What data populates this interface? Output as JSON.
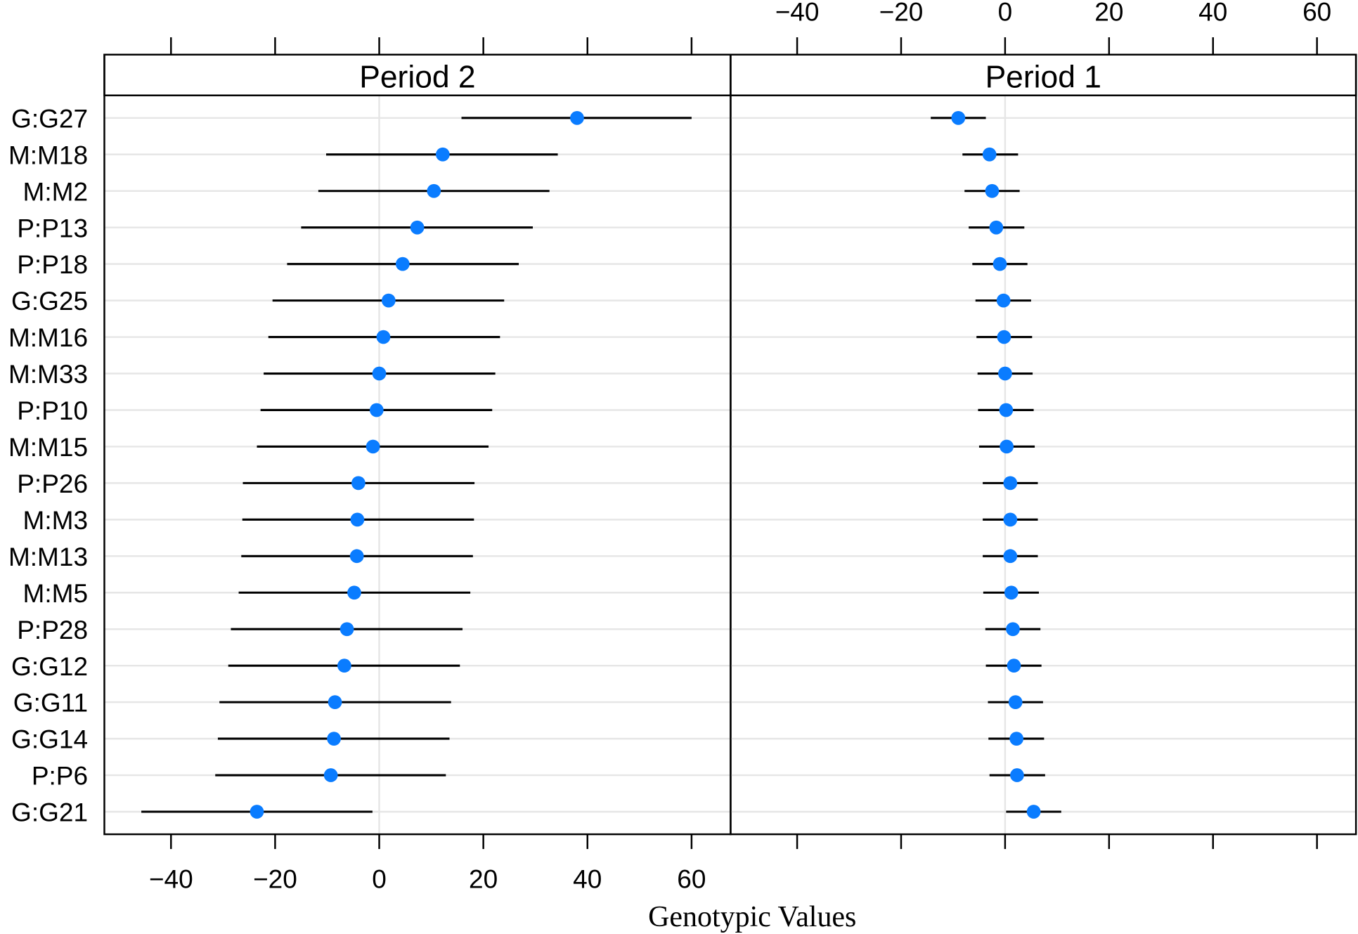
{
  "chart_data": {
    "type": "dotplot-interval",
    "xlabel": "Genotypic Values",
    "xlim": [
      -52.8,
      67.5
    ],
    "ticks": [
      -40,
      -20,
      0,
      20,
      40,
      60
    ],
    "grid": true,
    "colors": {
      "point": "#0a7cff",
      "line": "#000000",
      "grid": "#e6e6e6"
    },
    "categories": [
      "G:G27",
      "M:M18",
      "M:M2",
      "P:P13",
      "P:P18",
      "G:G25",
      "M:M16",
      "M:M33",
      "P:P10",
      "M:M15",
      "P:P26",
      "M:M3",
      "M:M13",
      "M:M5",
      "P:P28",
      "G:G12",
      "G:G11",
      "G:G14",
      "P:P6",
      "G:G21"
    ],
    "panels": [
      {
        "title": "Period   2",
        "values": [
          38,
          12.2,
          10.5,
          7.3,
          4.5,
          1.8,
          0.8,
          0,
          -0.5,
          -1.2,
          -4,
          -4.2,
          -4.3,
          -4.8,
          -6.2,
          -6.7,
          -8.5,
          -8.7,
          -9.3,
          -23.5
        ],
        "lower": [
          15.8,
          -10.2,
          -11.7,
          -15,
          -17.7,
          -20.5,
          -21.3,
          -22.2,
          -22.8,
          -23.5,
          -26.2,
          -26.3,
          -26.5,
          -27,
          -28.5,
          -29,
          -30.7,
          -31,
          -31.5,
          -45.7
        ],
        "upper": [
          60,
          34.3,
          32.7,
          29.5,
          26.8,
          24,
          23.2,
          22.3,
          21.7,
          21,
          18.3,
          18.2,
          18,
          17.5,
          16,
          15.5,
          13.8,
          13.5,
          12.8,
          -1.3
        ]
      },
      {
        "title": "Period   1",
        "values": [
          -9,
          -3,
          -2.5,
          -1.7,
          -1,
          -0.3,
          -0.2,
          0,
          0.2,
          0.3,
          1,
          1,
          1,
          1.2,
          1.5,
          1.7,
          2,
          2.2,
          2.3,
          5.5
        ],
        "lower": [
          -14.3,
          -8.2,
          -7.8,
          -7,
          -6.3,
          -5.7,
          -5.5,
          -5.3,
          -5.2,
          -5,
          -4.3,
          -4.3,
          -4.3,
          -4.2,
          -3.8,
          -3.7,
          -3.3,
          -3.2,
          -3,
          0.2
        ],
        "upper": [
          -3.7,
          2.5,
          2.8,
          3.7,
          4.3,
          5,
          5.2,
          5.3,
          5.5,
          5.7,
          6.3,
          6.3,
          6.3,
          6.5,
          6.8,
          7,
          7.3,
          7.5,
          7.7,
          10.8
        ]
      }
    ]
  }
}
